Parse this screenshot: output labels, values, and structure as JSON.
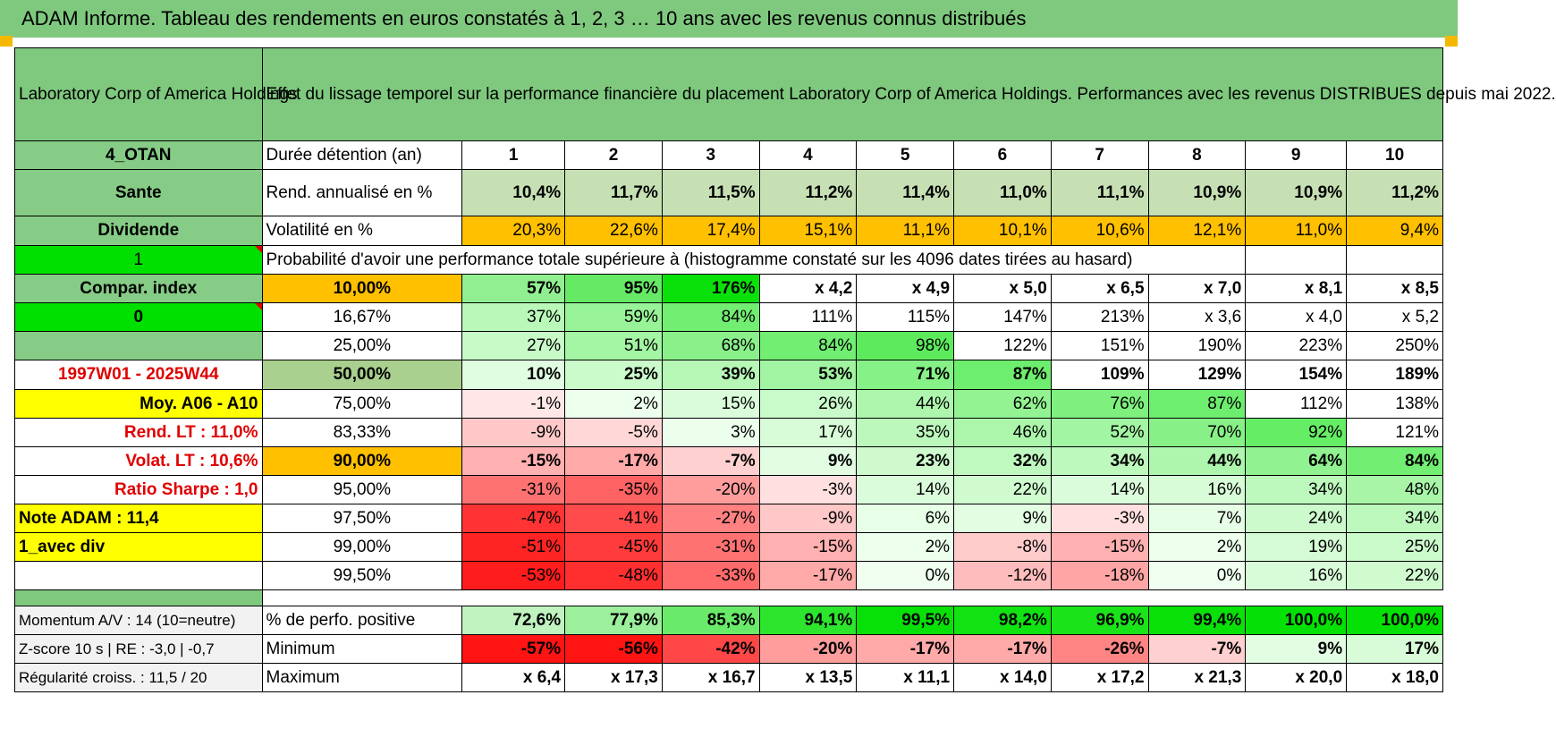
{
  "page": {
    "title": "ADAM Informe. Tableau des rendements en euros constatés à 1, 2, 3 … 10 ans avec les revenus connus distribués"
  },
  "colors": {
    "title_bar": "#7fc97f",
    "volatility": "#ffc000",
    "highlight_yellow": "#ffff00",
    "bright_green": "#00e000",
    "label_red": "#e00000"
  },
  "header": {
    "company": "Laboratory Corp of America Holdings",
    "description": "Effet du lissage temporel sur la performance financière du placement Laboratory Corp of America Holdings. Performances avec les revenus DISTRIBUES depuis mai 2022."
  },
  "years_row": {
    "side": "4_OTAN",
    "label": "Durée détention (an)",
    "values": [
      "1",
      "2",
      "3",
      "4",
      "5",
      "6",
      "7",
      "8",
      "9",
      "10"
    ]
  },
  "return_row": {
    "side": "Sante",
    "label": "Rend. annualisé en %",
    "values": [
      "10,4%",
      "11,7%",
      "11,5%",
      "11,2%",
      "11,4%",
      "11,0%",
      "11,1%",
      "10,9%",
      "10,9%",
      "11,2%"
    ]
  },
  "vol_row": {
    "side": "Dividende",
    "label": "Volatilité en %",
    "values": [
      "20,3%",
      "22,6%",
      "17,4%",
      "15,1%",
      "11,1%",
      "10,1%",
      "10,6%",
      "12,1%",
      "11,0%",
      "9,4%"
    ]
  },
  "prob_header": {
    "side": "1",
    "text": "Probabilité d'avoir une performance totale supérieure à (histogramme constaté sur les 4096 dates tirées au hasard)"
  },
  "dist_rows": [
    {
      "side": "Compar. index",
      "pct": "10,00%",
      "values": [
        "57%",
        "95%",
        "176%",
        "x 4,2",
        "x 4,9",
        "x 5,0",
        "x 6,5",
        "x 7,0",
        "x 8,1",
        "x 8,5"
      ]
    },
    {
      "side": "0",
      "pct": "16,67%",
      "values": [
        "37%",
        "59%",
        "84%",
        "111%",
        "115%",
        "147%",
        "213%",
        "x 3,6",
        "x 4,0",
        "x 5,2"
      ]
    },
    {
      "side": "",
      "pct": "25,00%",
      "values": [
        "27%",
        "51%",
        "68%",
        "84%",
        "98%",
        "122%",
        "151%",
        "190%",
        "223%",
        "250%"
      ]
    },
    {
      "side": "1997W01 - 2025W44",
      "pct": "50,00%",
      "values": [
        "10%",
        "25%",
        "39%",
        "53%",
        "71%",
        "87%",
        "109%",
        "129%",
        "154%",
        "189%"
      ]
    },
    {
      "side": "Moy. A06 - A10",
      "pct": "75,00%",
      "values": [
        "-1%",
        "2%",
        "15%",
        "26%",
        "44%",
        "62%",
        "76%",
        "87%",
        "112%",
        "138%"
      ]
    },
    {
      "side": "Rend. LT :    11,0%",
      "pct": "83,33%",
      "values": [
        "-9%",
        "-5%",
        "3%",
        "17%",
        "35%",
        "46%",
        "52%",
        "70%",
        "92%",
        "121%"
      ]
    },
    {
      "side": "Volat. LT :    10,6%",
      "pct": "90,00%",
      "values": [
        "-15%",
        "-17%",
        "-7%",
        "9%",
        "23%",
        "32%",
        "34%",
        "44%",
        "64%",
        "84%"
      ]
    },
    {
      "side": "Ratio Sharpe :     1,0",
      "pct": "95,00%",
      "values": [
        "-31%",
        "-35%",
        "-20%",
        "-3%",
        "14%",
        "22%",
        "14%",
        "16%",
        "34%",
        "48%"
      ]
    },
    {
      "side": "Note ADAM : 11,4",
      "pct": "97,50%",
      "values": [
        "-47%",
        "-41%",
        "-27%",
        "-9%",
        "6%",
        "9%",
        "-3%",
        "7%",
        "24%",
        "34%"
      ]
    },
    {
      "side": "1_avec div",
      "pct": "99,00%",
      "values": [
        "-51%",
        "-45%",
        "-31%",
        "-15%",
        "2%",
        "-8%",
        "-15%",
        "2%",
        "19%",
        "25%"
      ]
    },
    {
      "side": "",
      "pct": "99,50%",
      "values": [
        "-53%",
        "-48%",
        "-33%",
        "-17%",
        "0%",
        "-12%",
        "-18%",
        "0%",
        "16%",
        "22%"
      ]
    }
  ],
  "summary_rows": [
    {
      "side": "Momentum A/V : 14 (10=neutre)",
      "label": "% de perfo. positive",
      "values": [
        "72,6%",
        "77,9%",
        "85,3%",
        "94,1%",
        "99,5%",
        "98,2%",
        "96,9%",
        "99,4%",
        "100,0%",
        "100,0%"
      ]
    },
    {
      "side": "Z-score 10 s | RE : -3,0 | -0,7",
      "label": "Minimum",
      "values": [
        "-57%",
        "-56%",
        "-42%",
        "-20%",
        "-17%",
        "-17%",
        "-26%",
        "-7%",
        "9%",
        "17%"
      ]
    },
    {
      "side": "Régularité croiss. : 11,5 / 20",
      "label": "Maximum",
      "values": [
        "x 6,4",
        "x 17,3",
        "x 16,7",
        "x 13,5",
        "x 11,1",
        "x 14,0",
        "x 17,2",
        "x 21,3",
        "x 20,0",
        "x 18,0"
      ]
    }
  ]
}
